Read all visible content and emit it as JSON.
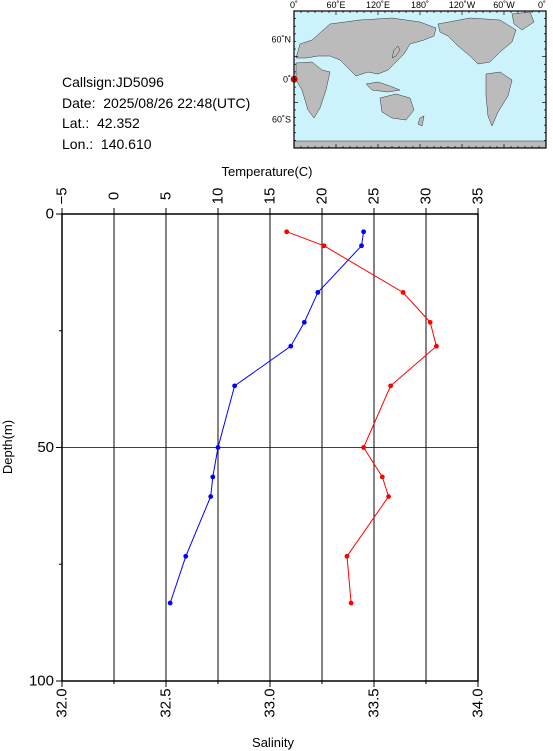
{
  "info": {
    "callsign": "Callsign:JD5096",
    "date": "Date:  2025/08/26 22:48(UTC)",
    "lat": "Lat.:  42.352",
    "lon": "Lon.:  140.610"
  },
  "map": {
    "top_ticks": [
      "0˚",
      "60˚E",
      "120˚E",
      "180˚",
      "120˚W",
      "60˚W",
      "0˚"
    ],
    "left_ticks": [
      "60˚N",
      "0˚",
      "60˚S"
    ],
    "colors": {
      "ocean": "#ccf2fb",
      "land": "#bbbbbb",
      "marker": "#ff0000"
    }
  },
  "chart_data": {
    "type": "line",
    "title": "",
    "xlabel_top": "Temperature(C)",
    "xlabel_bottom": "Salinity",
    "ylabel": "Depth(m)",
    "ylim": [
      0,
      100
    ],
    "y_inverted": true,
    "temperature_lim": [
      -5,
      35
    ],
    "salinity_lim": [
      32.0,
      34.0
    ],
    "temperature_ticks": [
      "−5",
      "0",
      "5",
      "10",
      "15",
      "20",
      "25",
      "30",
      "35"
    ],
    "salinity_ticks": [
      "32.0",
      "32.5",
      "33.0",
      "33.5",
      "34.0"
    ],
    "depth_ticks": [
      "0",
      "50",
      "100"
    ],
    "grid": true,
    "series": [
      {
        "color": "#0000ff",
        "axis": "temperature",
        "points": [
          {
            "x": 24.0,
            "y": 3.8
          },
          {
            "x": 23.8,
            "y": 6.8
          },
          {
            "x": 19.6,
            "y": 16.8
          },
          {
            "x": 18.3,
            "y": 23.2
          },
          {
            "x": 17.0,
            "y": 28.3
          },
          {
            "x": 11.6,
            "y": 36.8
          },
          {
            "x": 10.0,
            "y": 50.0
          },
          {
            "x": 9.5,
            "y": 56.3
          },
          {
            "x": 9.3,
            "y": 60.5
          },
          {
            "x": 6.9,
            "y": 73.3
          },
          {
            "x": 5.4,
            "y": 83.3
          }
        ]
      },
      {
        "color": "#ff0000",
        "axis": "salinity",
        "points": [
          {
            "x": 33.08,
            "y": 3.8
          },
          {
            "x": 33.26,
            "y": 6.8
          },
          {
            "x": 33.64,
            "y": 16.8
          },
          {
            "x": 33.77,
            "y": 23.2
          },
          {
            "x": 33.8,
            "y": 28.3
          },
          {
            "x": 33.58,
            "y": 36.8
          },
          {
            "x": 33.45,
            "y": 50.0
          },
          {
            "x": 33.54,
            "y": 56.3
          },
          {
            "x": 33.57,
            "y": 60.5
          },
          {
            "x": 33.37,
            "y": 73.3
          },
          {
            "x": 33.39,
            "y": 83.3
          }
        ]
      }
    ]
  }
}
